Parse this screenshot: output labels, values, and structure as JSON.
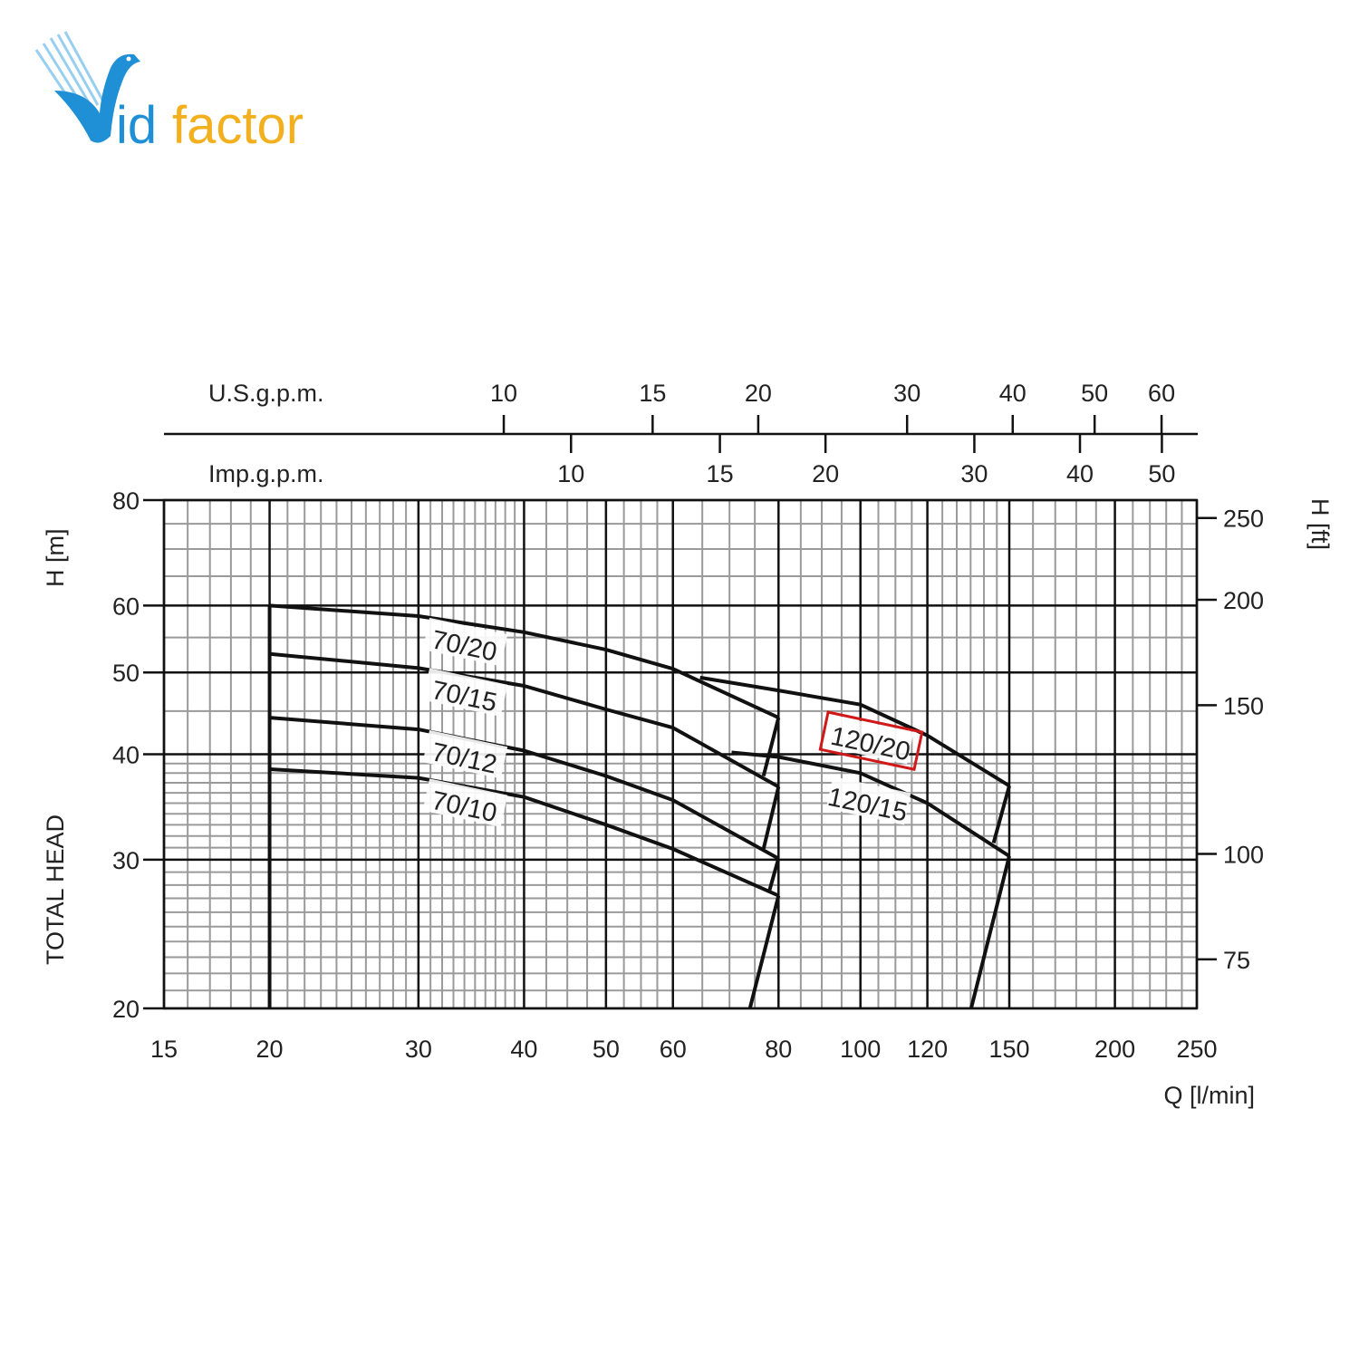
{
  "logo": {
    "text_a": "id",
    "text_b": "factor",
    "wordmark": "Vidfactor",
    "colors": {
      "blue": "#1f8fd6",
      "orange": "#f2b01e"
    }
  },
  "chart_data": {
    "type": "line",
    "x_scale": "log",
    "y_scale": "log",
    "xlabel": "Q [l/min]",
    "ylabel": "TOTAL HEAD",
    "ylabel_unit": "H [m]",
    "y2label": "H [ft]",
    "top_axis_1_label": "U.S.g.p.m.",
    "top_axis_2_label": "Imp.g.p.m.",
    "xlim": [
      15,
      250
    ],
    "ylim": [
      20,
      80
    ],
    "grid": true,
    "x_ticks": [
      "15",
      "20",
      "30",
      "40",
      "50",
      "60",
      "80",
      "100",
      "120",
      "150",
      "200",
      "250"
    ],
    "y_ticks": [
      "20",
      "30",
      "40",
      "50",
      "60",
      "80"
    ],
    "y2_ticks": [
      "75",
      "100",
      "150",
      "200",
      "250"
    ],
    "us_gpm_ticks": [
      "10",
      "15",
      "20",
      "30",
      "40",
      "50",
      "60"
    ],
    "imp_gpm_ticks": [
      "10",
      "15",
      "20",
      "30",
      "40",
      "50"
    ],
    "series": [
      {
        "name": "70/20",
        "x": [
          20,
          30,
          40,
          50,
          60,
          80
        ],
        "y": [
          60,
          58.3,
          55.8,
          53.2,
          50.5,
          44.2
        ],
        "label_at": [
          34,
          53.8
        ]
      },
      {
        "name": "70/15",
        "x": [
          20,
          30,
          40,
          50,
          60,
          80
        ],
        "y": [
          52.6,
          50.6,
          48.2,
          45.2,
          43.0,
          36.6
        ],
        "label_at": [
          34,
          46.9
        ]
      },
      {
        "name": "70/12",
        "x": [
          20,
          30,
          40,
          50,
          60,
          80
        ],
        "y": [
          44.2,
          42.8,
          40.4,
          37.7,
          35.3,
          30.1
        ],
        "label_at": [
          34,
          39.6
        ]
      },
      {
        "name": "70/10",
        "x": [
          20,
          30,
          40,
          50,
          60,
          80
        ],
        "y": [
          38.4,
          37.5,
          35.6,
          33.0,
          30.9,
          27.2
        ],
        "label_at": [
          34,
          34.7
        ]
      },
      {
        "name": "120/20",
        "x": [
          64.6,
          80,
          100,
          120,
          150
        ],
        "y": [
          49.3,
          47.6,
          45.8,
          42.1,
          36.7
        ],
        "label_at": [
          102.8,
          41.2
        ],
        "highlighted": true
      },
      {
        "name": "120/15",
        "x": [
          70.4,
          80,
          100,
          120,
          150
        ],
        "y": [
          40.2,
          39.7,
          38.0,
          35.0,
          30.3
        ],
        "label_at": [
          102,
          34.9
        ]
      }
    ],
    "limit_lines": [
      {
        "x": [
          80,
          76.8
        ],
        "y": [
          44.2,
          37.7
        ]
      },
      {
        "x": [
          80,
          76.8
        ],
        "y": [
          36.6,
          30.9
        ]
      },
      {
        "x": [
          80,
          77.9
        ],
        "y": [
          30.1,
          27.4
        ]
      },
      {
        "x": [
          80,
          74.0
        ],
        "y": [
          27.2,
          20
        ]
      },
      {
        "x": [
          150,
          143.7
        ],
        "y": [
          36.7,
          31.4
        ]
      },
      {
        "x": [
          150,
          135.2
        ],
        "y": [
          30.3,
          20
        ]
      }
    ],
    "start_line": {
      "x": [
        20,
        20
      ],
      "y": [
        20,
        60
      ]
    },
    "colors": {
      "curve": "#111111",
      "grid_major": "#111111",
      "grid_minor": "#9a9a9a",
      "highlight": "#d01818"
    }
  }
}
